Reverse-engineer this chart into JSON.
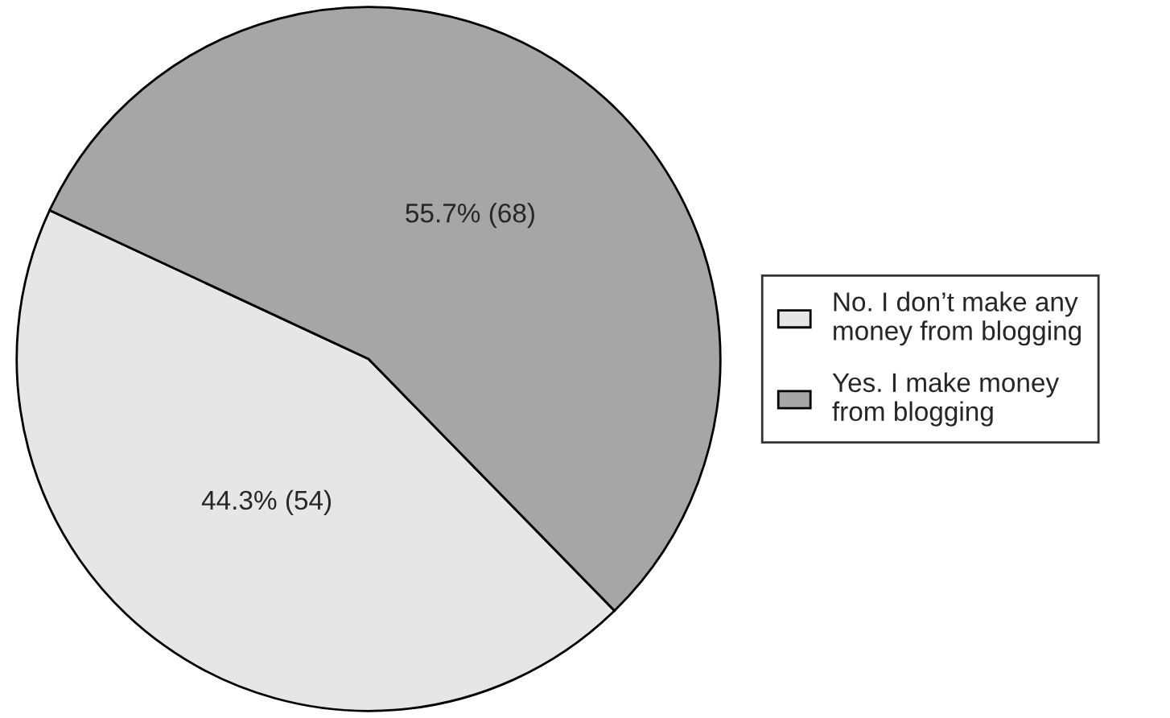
{
  "chart_data": {
    "type": "pie",
    "categories": [
      "No. I don’t make any\nmoney from blogging",
      "Yes. I make money\nfrom blogging"
    ],
    "values": [
      54,
      68
    ],
    "value_labels": [
      "44.3% (54)",
      "55.7% (68)"
    ],
    "colors": [
      "#e6e6e6",
      "#a6a6a6"
    ],
    "legend": "right"
  }
}
